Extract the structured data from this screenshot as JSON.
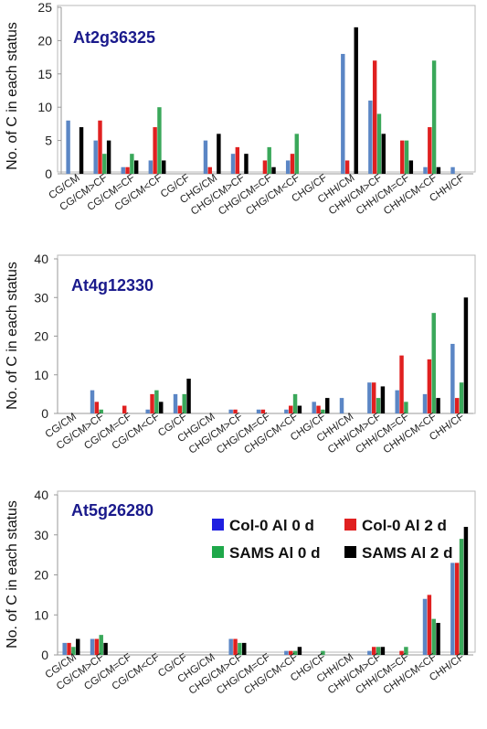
{
  "legend": {
    "items": [
      {
        "label": "Col-0 Al 0 d",
        "color": "#1f1fe0"
      },
      {
        "label": "Col-0 Al 2 d",
        "color": "#e02020"
      },
      {
        "label": "SAMS Al 0 d",
        "color": "#1fa84a"
      },
      {
        "label": "SAMS Al 2 d",
        "color": "#000000"
      }
    ]
  },
  "chart_data": [
    {
      "type": "bar",
      "title": "At2g36325",
      "ylabel": "No. of C in each status",
      "ylim": [
        0,
        25
      ],
      "yticks": [
        0,
        5,
        10,
        15,
        20,
        25
      ],
      "categories": [
        "CG/CM",
        "CG/CM>CF",
        "CG/CM=CF",
        "CG/CM<CF",
        "CG/CF",
        "CHG/CM",
        "CHG/CM>CF",
        "CHG/CM=CF",
        "CHG/CM<CF",
        "CHG/CF",
        "CHH/CM",
        "CHH/CM>CF",
        "CHH/CM=CF",
        "CHH/CM<CF",
        "CHH/CF"
      ],
      "series": [
        {
          "name": "Col-0 Al 0 d",
          "color": "#5b86c5",
          "values": [
            8,
            5,
            1,
            2,
            0,
            5,
            3,
            0,
            2,
            0,
            18,
            11,
            0,
            1,
            1
          ]
        },
        {
          "name": "Col-0 Al 2 d",
          "color": "#e02020",
          "values": [
            0,
            8,
            1,
            7,
            0,
            1,
            4,
            2,
            3,
            0,
            2,
            17,
            5,
            7,
            0
          ]
        },
        {
          "name": "SAMS Al 0 d",
          "color": "#3aa85a",
          "values": [
            0,
            3,
            3,
            10,
            0,
            0,
            0,
            4,
            6,
            0,
            0,
            9,
            5,
            17,
            0
          ]
        },
        {
          "name": "SAMS Al 2 d",
          "color": "#000000",
          "values": [
            7,
            5,
            2,
            2,
            0,
            6,
            3,
            1,
            0,
            0,
            22,
            6,
            2,
            1,
            0
          ]
        }
      ],
      "grid": false
    },
    {
      "type": "bar",
      "title": "At4g12330",
      "ylabel": "No. of C in each status",
      "ylim": [
        0,
        40
      ],
      "yticks": [
        0,
        10,
        20,
        30,
        40
      ],
      "categories": [
        "CG/CM",
        "CG/CM>CF",
        "CG/CM=CF",
        "CG/CM<CF",
        "CG/CF",
        "CHG/CM",
        "CHG/CM>CF",
        "CHG/CM=CF",
        "CHG/CM<CF",
        "CHG/CF",
        "CHH/CM",
        "CHH/CM>CF",
        "CHH/CM=CF",
        "CHH/CM<CF",
        "CHH/CF"
      ],
      "series": [
        {
          "name": "Col-0 Al 0 d",
          "color": "#5b86c5",
          "values": [
            0,
            6,
            0,
            1,
            5,
            0,
            1,
            1,
            1,
            3,
            4,
            8,
            6,
            5,
            18
          ]
        },
        {
          "name": "Col-0 Al 2 d",
          "color": "#e02020",
          "values": [
            0,
            3,
            2,
            5,
            2,
            0,
            1,
            1,
            2,
            2,
            0,
            8,
            15,
            14,
            4
          ]
        },
        {
          "name": "SAMS Al 0 d",
          "color": "#3aa85a",
          "values": [
            0,
            1,
            0,
            6,
            5,
            0,
            0,
            0,
            5,
            1,
            0,
            4,
            3,
            26,
            8
          ]
        },
        {
          "name": "SAMS Al 2 d",
          "color": "#000000",
          "values": [
            0,
            0,
            0,
            3,
            9,
            0,
            0,
            0,
            2,
            4,
            0,
            7,
            0,
            4,
            30
          ]
        }
      ],
      "grid": false
    },
    {
      "type": "bar",
      "title": "At5g26280",
      "ylabel": "No. of C in each status",
      "ylim": [
        0,
        40
      ],
      "yticks": [
        0,
        10,
        20,
        30,
        40
      ],
      "categories": [
        "CG/CM",
        "CG/CM>CF",
        "CG/CM=CF",
        "CG/CM<CF",
        "CG/CF",
        "CHG/CM",
        "CHG/CM>CF",
        "CHG/CM=CF",
        "CHG/CM<CF",
        "CHG/CF",
        "CHH/CM",
        "CHH/CM>CF",
        "CHH/CM=CF",
        "CHH/CM<CF",
        "CHH/CF"
      ],
      "series": [
        {
          "name": "Col-0 Al 0 d",
          "color": "#5b86c5",
          "values": [
            3,
            4,
            0,
            0,
            0,
            0,
            4,
            0,
            1,
            0,
            0,
            1,
            0,
            14,
            23
          ]
        },
        {
          "name": "Col-0 Al 2 d",
          "color": "#e02020",
          "values": [
            3,
            4,
            0,
            0,
            0,
            0,
            4,
            0,
            1,
            0,
            0,
            2,
            1,
            15,
            23
          ]
        },
        {
          "name": "SAMS Al 0 d",
          "color": "#3aa85a",
          "values": [
            2,
            5,
            0,
            0,
            0,
            0,
            3,
            0,
            1,
            1,
            0,
            2,
            2,
            9,
            29
          ]
        },
        {
          "name": "SAMS Al 2 d",
          "color": "#000000",
          "values": [
            4,
            3,
            0,
            0,
            0,
            0,
            3,
            0,
            2,
            0,
            0,
            2,
            0,
            8,
            32
          ]
        }
      ],
      "grid": false,
      "legend": "top-right"
    }
  ]
}
